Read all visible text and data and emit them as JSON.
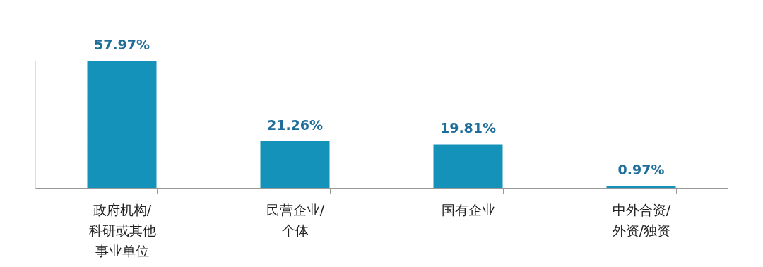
{
  "chart_data": {
    "type": "bar",
    "categories": [
      "政府机构/科研或其他事业单位",
      "民营企业/个体",
      "国有企业",
      "中外合资/外资/独资"
    ],
    "values": [
      57.97,
      21.26,
      19.81,
      0.97
    ],
    "value_labels": [
      "57.97%",
      "21.26%",
      "19.81%",
      "0.97%"
    ],
    "color": "#1592b9",
    "grid": false
  }
}
